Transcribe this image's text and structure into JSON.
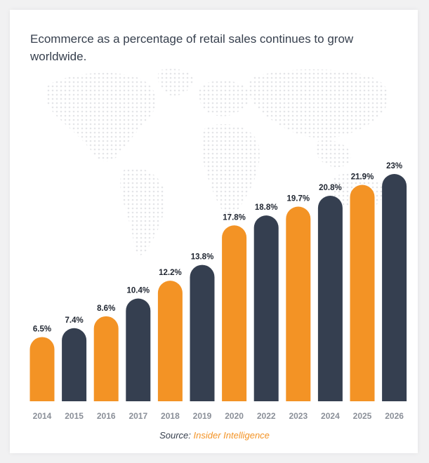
{
  "chart_data": {
    "type": "bar",
    "title": "Ecommerce as a percentage of retail sales continues to grow worldwide.",
    "categories": [
      "2014",
      "2015",
      "2016",
      "2017",
      "2018",
      "2019",
      "2020",
      "2022",
      "2023",
      "2024",
      "2025",
      "2026"
    ],
    "values": [
      6.5,
      7.4,
      8.6,
      10.4,
      12.2,
      13.8,
      17.8,
      18.8,
      19.7,
      20.8,
      21.9,
      23
    ],
    "data_labels": [
      "6.5%",
      "7.4%",
      "8.6%",
      "10.4%",
      "12.2%",
      "13.8%",
      "17.8%",
      "18.8%",
      "19.7%",
      "20.8%",
      "21.9%",
      "23%"
    ],
    "bar_colors": [
      "#f39325",
      "#353f50",
      "#f39325",
      "#353f50",
      "#f39325",
      "#353f50",
      "#f39325",
      "#353f50",
      "#f39325",
      "#353f50",
      "#f39325",
      "#353f50"
    ],
    "ylim": [
      0,
      23
    ],
    "grid": false,
    "xlabel": "",
    "ylabel": ""
  },
  "source": {
    "label": "Source:",
    "name": "Insider Intelligence"
  },
  "colors": {
    "accent": "#f39325",
    "dark": "#353f50",
    "text": "#37404e",
    "axis_text": "#8a8f98"
  }
}
